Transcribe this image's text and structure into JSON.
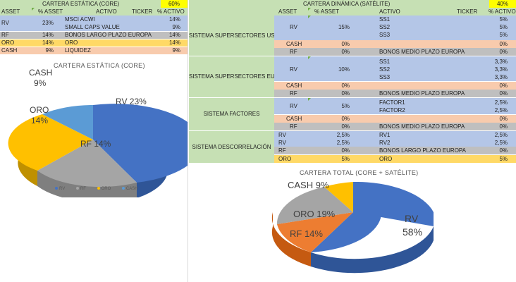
{
  "colors": {
    "rv": "#4472c4",
    "rf": "#a5a5a5",
    "oro": "#ffc000",
    "cash": "#5b9bd5",
    "rf_total": "#ed7d31",
    "cash_total": "#ffc000",
    "oro_total": "#a5a5a5"
  },
  "left_table": {
    "title": "CARTERA ESTÁTICA (CORE)",
    "pct": "60%",
    "headers": {
      "asset": "ASSET",
      "pct_asset": "% ASSET",
      "activo": "ACTIVO",
      "ticker": "TICKER",
      "pct_activo": "% ACTIVO"
    },
    "rv": {
      "asset": "RV",
      "pct": "23%",
      "a1": "MSCI ACWI",
      "p1": "14%",
      "a2": "SMALL CAPS VALUE",
      "p2": "9%"
    },
    "rf": {
      "asset": "RF",
      "pct": "14%",
      "a": "BONOS LARGO PLAZO EUROPA",
      "p": "14%"
    },
    "oro": {
      "asset": "ORO",
      "pct": "14%",
      "a": "ORO",
      "p": "14%"
    },
    "cash": {
      "asset": "CASH",
      "pct": "9%",
      "a": "LIQUIDEZ",
      "p": "9%"
    }
  },
  "right_table": {
    "title": "CARTERA DINÁMICA (SATÉLITE)",
    "pct": "40%",
    "headers": {
      "asset": "ASSET",
      "pct_asset": "% ASSET",
      "activo": "ACTIVO",
      "ticker": "TICKER",
      "pct_activo": "% ACTIVO"
    },
    "usa": {
      "label": "SISTEMA SUPERSECTORES USA",
      "rv": "RV",
      "rv_pct": "15%",
      "a1": "SS1",
      "p1": "5%",
      "a2": "SS2",
      "p2": "5%",
      "a3": "SS3",
      "p3": "5%",
      "cash": "CASH",
      "cash_pct": "0%",
      "cash_p": "0%",
      "rf": "RF",
      "rf_pct": "0%",
      "rf_a": "BONOS MEDIO PLAZO EUROPA",
      "rf_p": "0%"
    },
    "europa": {
      "label": "SISTEMA SUPERSECTORES EUROPA",
      "rv": "RV",
      "rv_pct": "10%",
      "a1": "SS1",
      "p1": "3,3%",
      "a2": "SS2",
      "p2": "3,3%",
      "a3": "SS3",
      "p3": "3,3%",
      "cash": "CASH",
      "cash_pct": "0%",
      "cash_p": "0%",
      "rf": "RF",
      "rf_pct": "0%",
      "rf_a": "BONOS MEDIO PLAZO EUROPA",
      "rf_p": "0%"
    },
    "factores": {
      "label": "SISTEMA FACTORES",
      "rv": "RV",
      "rv_pct": "5%",
      "a1": "FACTOR1",
      "p1": "2,5%",
      "a2": "FACTOR2",
      "p2": "2,5%",
      "cash": "CASH",
      "cash_pct": "0%",
      "cash_p": "0%",
      "rf": "RF",
      "rf_pct": "0%",
      "rf_a": "BONOS MEDIO PLAZO EUROPA",
      "rf_p": "0%"
    },
    "descorr": {
      "label": "SISTEMA DESCORRELACIÓN",
      "rv1": "RV",
      "rv1_pct": "2,5%",
      "a1": "RV1",
      "p1": "2,5%",
      "rv2": "RV",
      "rv2_pct": "2,5%",
      "a2": "RV2",
      "p2": "2,5%",
      "rf": "RF",
      "rf_pct": "0%",
      "rf_a": "BONOS LARGO PLAZO EUROPA",
      "rf_p": "0%",
      "oro": "ORO",
      "oro_pct": "5%",
      "oro_a": "ORO",
      "oro_p": "5%"
    }
  },
  "chart_data": [
    {
      "type": "pie",
      "title": "CARTERA ESTÁTICA (CORE)",
      "categories": [
        "RV",
        "RF",
        "ORO",
        "CASH"
      ],
      "values": [
        23,
        14,
        14,
        9
      ],
      "labels": {
        "rv": "RV 23%",
        "rf": "RF 14%",
        "oro1": "ORO",
        "oro2": "14%",
        "cash1": "CASH",
        "cash2": "9%"
      },
      "legend_position": "bottom",
      "legend": {
        "rv": "RV",
        "rf": "RF",
        "oro": "ORO",
        "cash": "CASH"
      }
    },
    {
      "type": "pie",
      "title": "CARTERA TOTAL (CORE + SATÉLITE)",
      "categories": [
        "RV",
        "RF",
        "ORO",
        "CASH"
      ],
      "values": [
        58,
        14,
        19,
        9
      ],
      "labels": {
        "rv1": "RV",
        "rv2": "58%",
        "rf": "RF 14%",
        "oro": "ORO 19%",
        "cash": "CASH 9%"
      }
    }
  ]
}
